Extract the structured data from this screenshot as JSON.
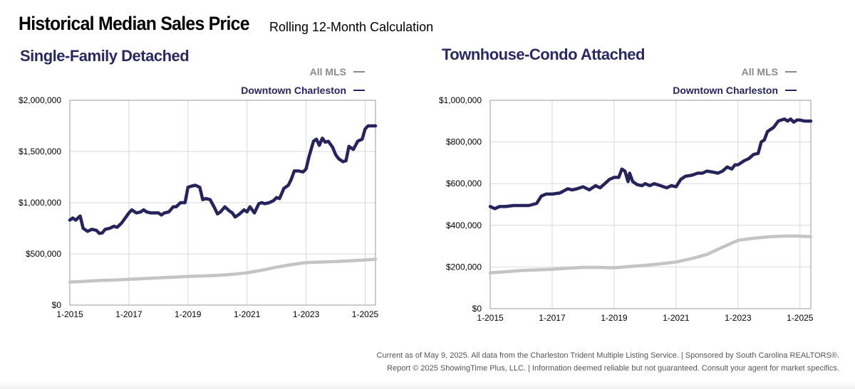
{
  "header": {
    "title": "Historical Median Sales Price",
    "subtitle": "Rolling 12-Month Calculation"
  },
  "footer": {
    "line1": "Current as of May 9, 2025. All data from the Charleston Trident Multiple Listing Service.  |  Sponsored by South Carolina REALTORS®.",
    "line2": "Report © 2025 ShowingTime Plus, LLC.  |  Information deemed reliable but not guaranteed. Consult your agent for market specifics."
  },
  "colors": {
    "all_mls": "#c4c4c4",
    "downtown": "#26245a",
    "legend_all": "#8a8a8a",
    "grid": "#d9d9d9"
  },
  "chart_data": [
    {
      "type": "line",
      "title": "Single-Family Detached",
      "xlabel": "",
      "ylabel": "",
      "x_range": [
        2015.0,
        2025.35
      ],
      "ylim": [
        0,
        2000000
      ],
      "y_ticks": [
        0,
        500000,
        1000000,
        1500000,
        2000000
      ],
      "y_tick_labels": [
        "$0",
        "$500,000",
        "$1,000,000",
        "$1,500,000",
        "$2,000,000"
      ],
      "x_ticks": [
        2015,
        2017,
        2019,
        2021,
        2023,
        2025
      ],
      "x_tick_labels": [
        "1-2015",
        "1-2017",
        "1-2019",
        "1-2021",
        "1-2023",
        "1-2025"
      ],
      "legend_position": "top-right",
      "series": [
        {
          "name": "All MLS",
          "x": [
            2015.0,
            2015.5,
            2016.0,
            2016.5,
            2017.0,
            2017.5,
            2018.0,
            2018.5,
            2019.0,
            2019.5,
            2020.0,
            2020.5,
            2021.0,
            2021.5,
            2022.0,
            2022.5,
            2023.0,
            2023.5,
            2024.0,
            2024.5,
            2025.0,
            2025.35
          ],
          "values": [
            225000,
            232000,
            240000,
            245000,
            252000,
            258000,
            265000,
            272000,
            280000,
            285000,
            290000,
            300000,
            315000,
            340000,
            370000,
            395000,
            415000,
            420000,
            425000,
            432000,
            440000,
            448000
          ]
        },
        {
          "name": "Downtown Charleston",
          "x": [
            2015.0,
            2015.1,
            2015.2,
            2015.35,
            2015.45,
            2015.6,
            2015.75,
            2015.9,
            2016.0,
            2016.1,
            2016.2,
            2016.35,
            2016.5,
            2016.6,
            2016.75,
            2016.9,
            2017.0,
            2017.1,
            2017.25,
            2017.4,
            2017.5,
            2017.6,
            2017.75,
            2017.9,
            2018.0,
            2018.1,
            2018.2,
            2018.35,
            2018.5,
            2018.6,
            2018.75,
            2018.9,
            2019.0,
            2019.1,
            2019.25,
            2019.4,
            2019.5,
            2019.6,
            2019.75,
            2019.9,
            2020.0,
            2020.1,
            2020.25,
            2020.4,
            2020.5,
            2020.6,
            2020.75,
            2020.9,
            2021.0,
            2021.1,
            2021.25,
            2021.4,
            2021.5,
            2021.6,
            2021.75,
            2021.9,
            2022.0,
            2022.1,
            2022.25,
            2022.4,
            2022.5,
            2022.6,
            2022.75,
            2022.9,
            2023.0,
            2023.1,
            2023.25,
            2023.35,
            2023.45,
            2023.55,
            2023.65,
            2023.75,
            2023.9,
            2024.0,
            2024.1,
            2024.25,
            2024.35,
            2024.45,
            2024.6,
            2024.75,
            2024.9,
            2025.0,
            2025.1,
            2025.35
          ],
          "values": [
            830000,
            850000,
            830000,
            870000,
            750000,
            720000,
            740000,
            730000,
            700000,
            705000,
            740000,
            750000,
            770000,
            760000,
            800000,
            860000,
            900000,
            930000,
            900000,
            910000,
            930000,
            910000,
            900000,
            900000,
            900000,
            880000,
            900000,
            910000,
            960000,
            960000,
            1000000,
            1000000,
            1150000,
            1160000,
            1170000,
            1150000,
            1030000,
            1040000,
            1030000,
            950000,
            890000,
            910000,
            960000,
            920000,
            900000,
            860000,
            890000,
            930000,
            910000,
            960000,
            900000,
            990000,
            1000000,
            990000,
            1000000,
            1020000,
            1050000,
            1040000,
            1140000,
            1170000,
            1230000,
            1310000,
            1310000,
            1300000,
            1330000,
            1450000,
            1600000,
            1620000,
            1560000,
            1630000,
            1590000,
            1600000,
            1540000,
            1470000,
            1430000,
            1400000,
            1410000,
            1550000,
            1520000,
            1600000,
            1620000,
            1720000,
            1750000,
            1750000
          ]
        }
      ]
    },
    {
      "type": "line",
      "title": "Townhouse-Condo Attached",
      "xlabel": "",
      "ylabel": "",
      "x_range": [
        2015.0,
        2025.35
      ],
      "ylim": [
        0,
        1000000
      ],
      "y_ticks": [
        0,
        200000,
        400000,
        600000,
        800000,
        1000000
      ],
      "y_tick_labels": [
        "$0",
        "$200,000",
        "$400,000",
        "$600,000",
        "$800,000",
        "$1,000,000"
      ],
      "x_ticks": [
        2015,
        2017,
        2019,
        2021,
        2023,
        2025
      ],
      "x_tick_labels": [
        "1-2015",
        "1-2017",
        "1-2019",
        "1-2021",
        "1-2023",
        "1-2025"
      ],
      "legend_position": "top-right",
      "series": [
        {
          "name": "All MLS",
          "x": [
            2015.0,
            2015.5,
            2016.0,
            2016.5,
            2017.0,
            2017.5,
            2018.0,
            2018.5,
            2019.0,
            2019.5,
            2020.0,
            2020.5,
            2021.0,
            2021.5,
            2022.0,
            2022.5,
            2023.0,
            2023.5,
            2024.0,
            2024.5,
            2025.0,
            2025.35
          ],
          "values": [
            172000,
            177000,
            183000,
            186000,
            189000,
            194000,
            198000,
            198000,
            196000,
            202000,
            208000,
            215000,
            224000,
            240000,
            260000,
            295000,
            328000,
            338000,
            345000,
            348000,
            348000,
            345000
          ]
        },
        {
          "name": "Downtown Charleston",
          "x": [
            2015.0,
            2015.15,
            2015.3,
            2015.5,
            2015.75,
            2016.0,
            2016.25,
            2016.5,
            2016.65,
            2016.8,
            2017.0,
            2017.25,
            2017.5,
            2017.65,
            2017.8,
            2018.0,
            2018.2,
            2018.4,
            2018.55,
            2018.7,
            2018.85,
            2019.0,
            2019.15,
            2019.25,
            2019.35,
            2019.45,
            2019.5,
            2019.6,
            2019.75,
            2019.9,
            2020.0,
            2020.15,
            2020.3,
            2020.5,
            2020.7,
            2020.85,
            2021.0,
            2021.15,
            2021.3,
            2021.5,
            2021.7,
            2021.85,
            2022.0,
            2022.2,
            2022.35,
            2022.5,
            2022.65,
            2022.8,
            2022.9,
            2023.0,
            2023.2,
            2023.35,
            2023.5,
            2023.65,
            2023.75,
            2023.85,
            2023.95,
            2024.05,
            2024.15,
            2024.3,
            2024.4,
            2024.5,
            2024.6,
            2024.7,
            2024.8,
            2024.9,
            2025.0,
            2025.15,
            2025.35
          ],
          "values": [
            490000,
            480000,
            490000,
            490000,
            495000,
            495000,
            495000,
            505000,
            540000,
            550000,
            550000,
            555000,
            575000,
            570000,
            575000,
            585000,
            570000,
            590000,
            580000,
            600000,
            620000,
            630000,
            630000,
            670000,
            660000,
            610000,
            650000,
            610000,
            595000,
            590000,
            600000,
            590000,
            600000,
            590000,
            580000,
            590000,
            585000,
            620000,
            635000,
            640000,
            650000,
            650000,
            660000,
            655000,
            650000,
            660000,
            680000,
            670000,
            690000,
            690000,
            710000,
            720000,
            740000,
            745000,
            800000,
            810000,
            850000,
            860000,
            870000,
            900000,
            905000,
            910000,
            900000,
            910000,
            895000,
            905000,
            905000,
            900000,
            900000
          ]
        }
      ]
    }
  ]
}
